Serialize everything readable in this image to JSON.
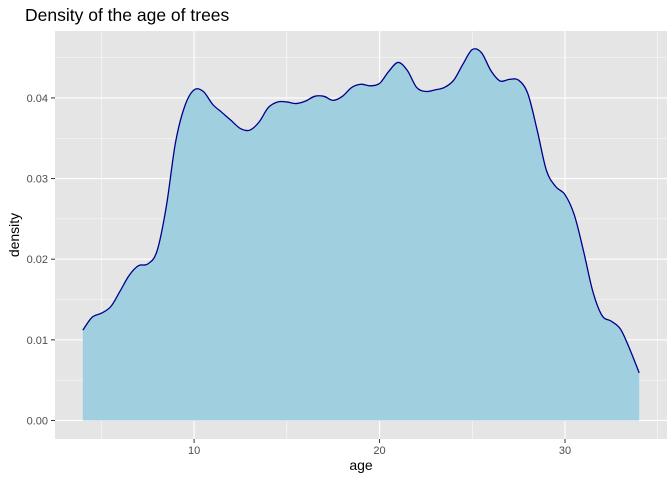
{
  "chart_data": {
    "type": "area",
    "title": "Density of the age of trees",
    "xlabel": "age",
    "ylabel": "density",
    "xlim": [
      2.5,
      35.5
    ],
    "ylim": [
      -0.0023,
      0.0483
    ],
    "x_ticks": [
      10,
      20,
      30
    ],
    "x_tick_labels": [
      "10",
      "20",
      "30"
    ],
    "y_ticks": [
      0.0,
      0.01,
      0.02,
      0.03,
      0.04
    ],
    "y_tick_labels": [
      "0.00",
      "0.01",
      "0.02",
      "0.03",
      "0.04"
    ],
    "grid": true,
    "legend": "none",
    "colors": {
      "panel": "#e5e5e5",
      "grid_major": "#ffffff",
      "fill": "#a0d0e0",
      "line": "#00008b",
      "tick": "#333333"
    },
    "x": [
      4,
      4.5,
      5,
      5.5,
      6,
      6.5,
      7,
      7.5,
      8,
      8.5,
      9,
      9.5,
      10,
      10.5,
      11,
      11.5,
      12,
      12.5,
      13,
      13.5,
      14,
      14.5,
      15,
      15.5,
      16,
      16.5,
      17,
      17.5,
      18,
      18.5,
      19,
      19.5,
      20,
      20.5,
      21,
      21.5,
      22,
      22.5,
      23,
      23.5,
      24,
      24.5,
      25,
      25.5,
      26,
      26.5,
      27,
      27.5,
      28,
      28.5,
      29,
      29.5,
      30,
      30.5,
      31,
      31.5,
      32,
      32.5,
      33,
      33.5,
      34
    ],
    "values": [
      0.0112,
      0.0128,
      0.0133,
      0.0141,
      0.016,
      0.018,
      0.0192,
      0.0194,
      0.021,
      0.0265,
      0.0345,
      0.039,
      0.041,
      0.0408,
      0.0392,
      0.0382,
      0.0372,
      0.0362,
      0.036,
      0.037,
      0.0388,
      0.0395,
      0.0395,
      0.0393,
      0.0396,
      0.0402,
      0.0402,
      0.0397,
      0.0402,
      0.0413,
      0.0417,
      0.0415,
      0.0418,
      0.0433,
      0.0444,
      0.0434,
      0.0413,
      0.0408,
      0.041,
      0.0413,
      0.0422,
      0.0442,
      0.046,
      0.0456,
      0.0434,
      0.0421,
      0.0423,
      0.0422,
      0.0405,
      0.036,
      0.031,
      0.029,
      0.028,
      0.0255,
      0.021,
      0.016,
      0.013,
      0.0123,
      0.0113,
      0.0088,
      0.0059
    ]
  }
}
